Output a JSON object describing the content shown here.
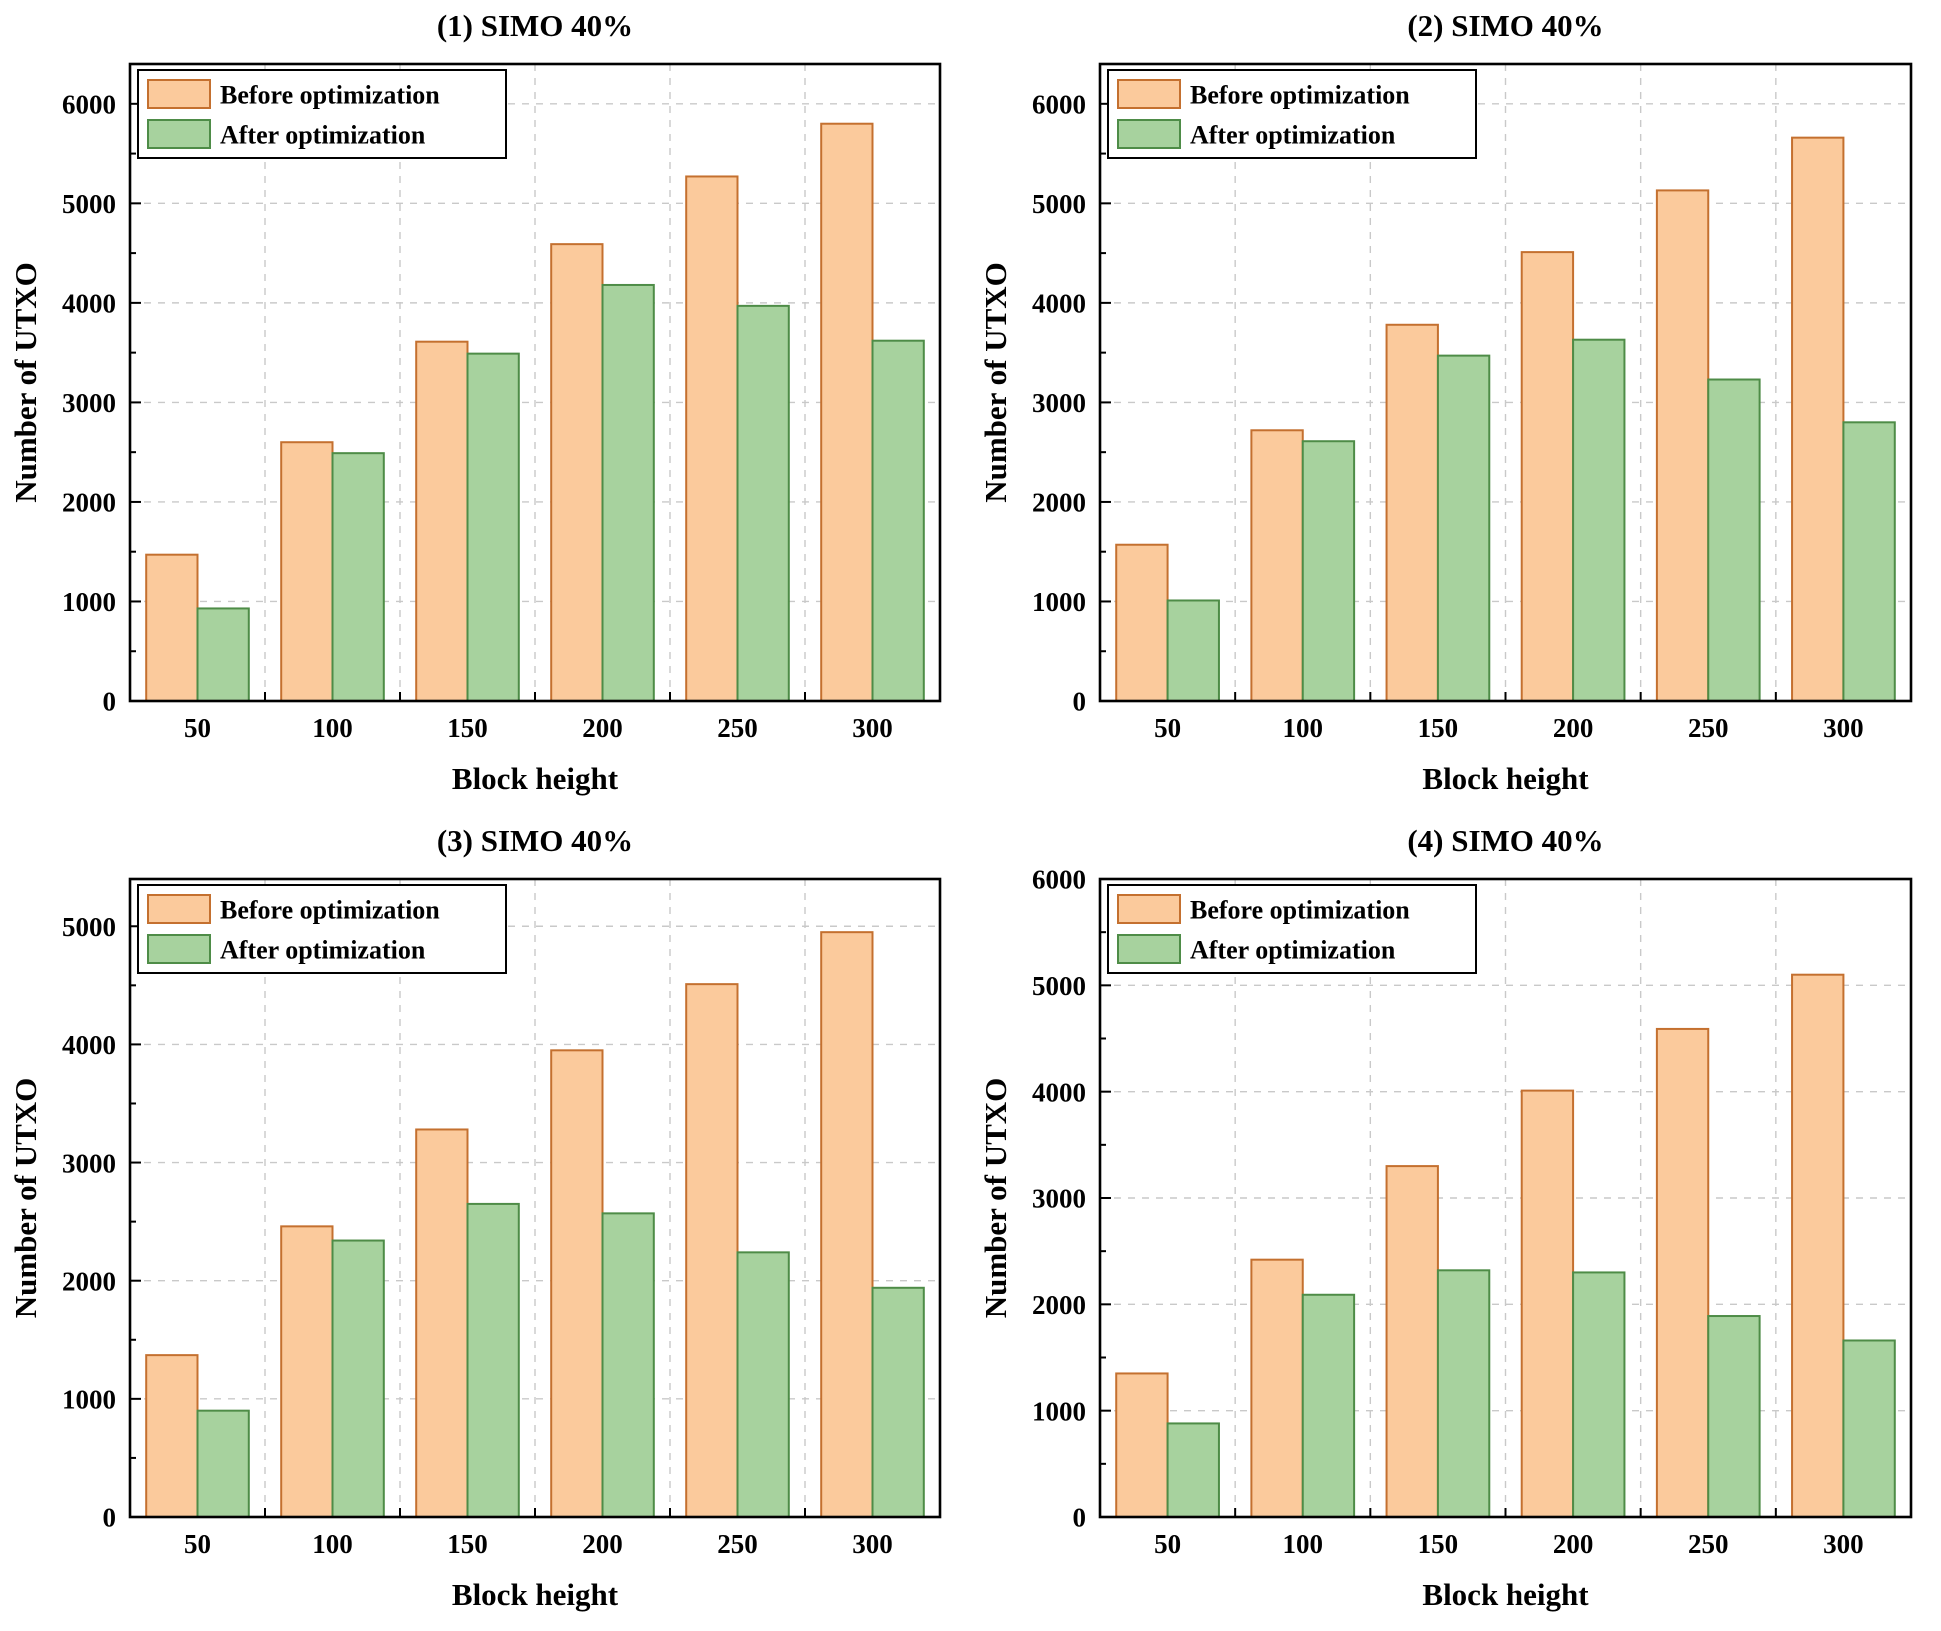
{
  "figure": {
    "description": "2x2 grid of grouped bar charts comparing UTXO counts before and after optimization"
  },
  "palette": {
    "before_fill": "#FBCA9C",
    "before_border": "#C4702F",
    "after_fill": "#A7D29E",
    "after_border": "#4E8C47",
    "grid_color": "#C9C9C9",
    "axis_color": "#000000",
    "legend_bg": "#FFFFFF",
    "legend_border": "#000000"
  },
  "chart_data": [
    {
      "type": "bar",
      "title": "(1) SIMO 40%",
      "xlabel": "Block height",
      "ylabel": "Number of UTXO",
      "categories": [
        "50",
        "100",
        "150",
        "200",
        "250",
        "300"
      ],
      "series": [
        {
          "name": "Before optimization",
          "values": [
            1470,
            2600,
            3610,
            4590,
            5270,
            5800
          ]
        },
        {
          "name": "After optimization",
          "values": [
            930,
            2490,
            3490,
            4180,
            3970,
            3620
          ]
        }
      ],
      "ylim": [
        0,
        6400
      ],
      "yticks": [
        0,
        1000,
        2000,
        3000,
        4000,
        5000,
        6000
      ],
      "grid": "dashed",
      "legend_position": "top-left"
    },
    {
      "type": "bar",
      "title": "(2) SIMO 40%",
      "xlabel": "Block height",
      "ylabel": "Number of UTXO",
      "categories": [
        "50",
        "100",
        "150",
        "200",
        "250",
        "300"
      ],
      "series": [
        {
          "name": "Before optimization",
          "values": [
            1570,
            2720,
            3780,
            4510,
            5130,
            5660
          ]
        },
        {
          "name": "After optimization",
          "values": [
            1010,
            2610,
            3470,
            3630,
            3230,
            2800
          ]
        }
      ],
      "ylim": [
        0,
        6400
      ],
      "yticks": [
        0,
        1000,
        2000,
        3000,
        4000,
        5000,
        6000
      ],
      "grid": "dashed",
      "legend_position": "top-left"
    },
    {
      "type": "bar",
      "title": "(3) SIMO 40%",
      "xlabel": "Block height",
      "ylabel": "Number of UTXO",
      "categories": [
        "50",
        "100",
        "150",
        "200",
        "250",
        "300"
      ],
      "series": [
        {
          "name": "Before optimization",
          "values": [
            1370,
            2460,
            3280,
            3950,
            4510,
            4950
          ]
        },
        {
          "name": "After optimization",
          "values": [
            900,
            2340,
            2650,
            2570,
            2240,
            1940
          ]
        }
      ],
      "ylim": [
        0,
        5400
      ],
      "yticks": [
        0,
        1000,
        2000,
        3000,
        4000,
        5000
      ],
      "grid": "dashed",
      "legend_position": "top-left"
    },
    {
      "type": "bar",
      "title": "(4) SIMO 40%",
      "xlabel": "Block height",
      "ylabel": "Number of UTXO",
      "categories": [
        "50",
        "100",
        "150",
        "200",
        "250",
        "300"
      ],
      "series": [
        {
          "name": "Before optimization",
          "values": [
            1350,
            2420,
            3300,
            4010,
            4590,
            5100
          ]
        },
        {
          "name": "After optimization",
          "values": [
            880,
            2090,
            2320,
            2300,
            1890,
            1660
          ]
        }
      ],
      "ylim": [
        0,
        6000
      ],
      "yticks": [
        0,
        1000,
        2000,
        3000,
        4000,
        5000,
        6000
      ],
      "grid": "dashed",
      "legend_position": "top-left"
    }
  ]
}
